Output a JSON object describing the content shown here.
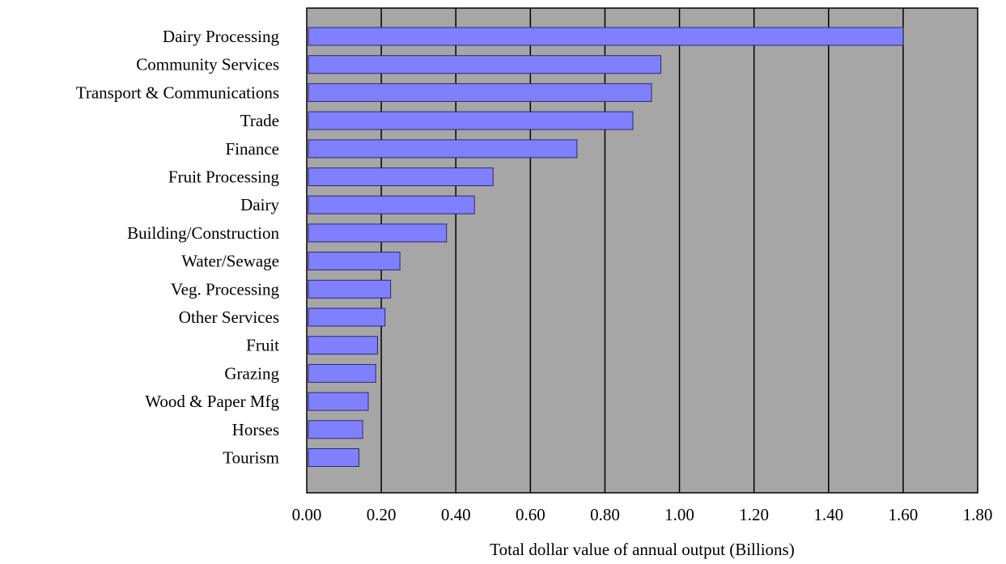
{
  "chart_data": {
    "type": "bar",
    "orientation": "horizontal",
    "categories": [
      "Dairy Processing",
      "Community Services",
      "Transport & Communications",
      "Trade",
      "Finance",
      "Fruit Processing",
      "Dairy",
      "Building/Construction",
      "Water/Sewage",
      "Veg. Processing",
      "Other Services",
      "Fruit",
      "Grazing",
      "Wood & Paper Mfg",
      "Horses",
      "Tourism"
    ],
    "values": [
      1.6,
      0.95,
      0.925,
      0.875,
      0.725,
      0.5,
      0.45,
      0.375,
      0.25,
      0.225,
      0.21,
      0.19,
      0.185,
      0.165,
      0.15,
      0.14
    ],
    "title": "",
    "xlabel": "Total dollar value of annual output (Billions)",
    "ylabel": "",
    "xlim": [
      0,
      1.8
    ],
    "xticks": [
      0.0,
      0.2,
      0.4,
      0.6,
      0.8,
      1.0,
      1.2,
      1.4,
      1.6,
      1.8
    ],
    "xtick_labels": [
      "0.00",
      "0.20",
      "0.40",
      "0.60",
      "0.80",
      "1.00",
      "1.20",
      "1.40",
      "1.60",
      "1.80"
    ],
    "grid": "vertical",
    "legend": "none",
    "colors": {
      "bar_fill": "#8080ff",
      "bar_stroke": "#2a2a6a",
      "plot_background": "#a6a6a6",
      "grid_line": "#000000",
      "page_background": "#ffffff"
    }
  }
}
